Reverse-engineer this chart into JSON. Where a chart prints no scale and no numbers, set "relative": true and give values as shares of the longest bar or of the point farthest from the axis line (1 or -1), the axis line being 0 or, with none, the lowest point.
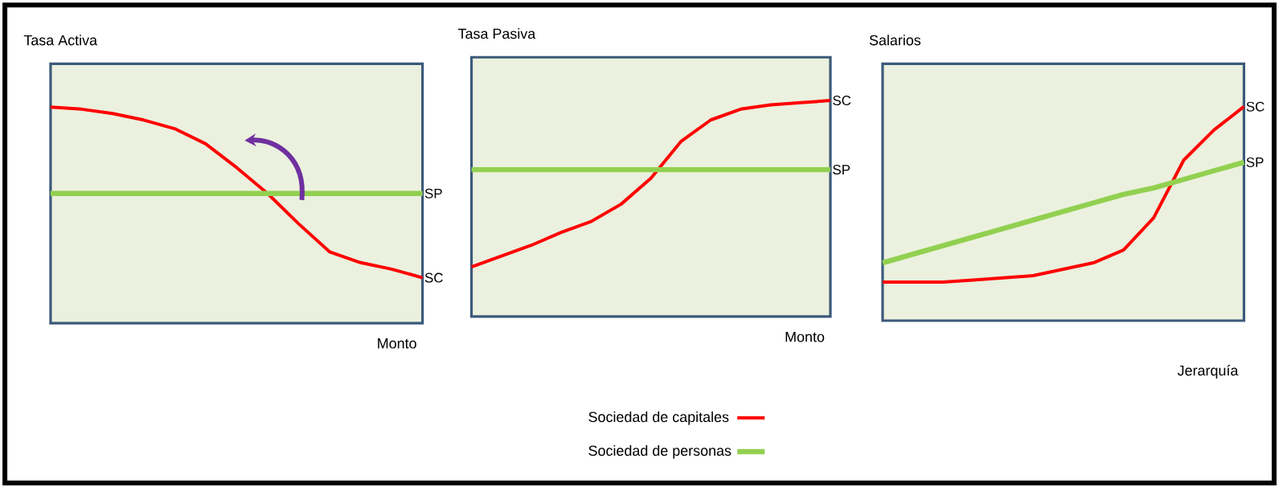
{
  "chart_data": [
    {
      "type": "line",
      "title": "Tasa Activa",
      "xlabel": "Monto",
      "relative": true,
      "categories": [
        null,
        null,
        null,
        null,
        null,
        null,
        null,
        null,
        null,
        null,
        null,
        null,
        null
      ],
      "series": [
        {
          "color": "#ff0000",
          "values": [
            1.0,
            0.99,
            0.97,
            0.94,
            0.9,
            0.83,
            0.72,
            0.6,
            0.46,
            0.33,
            0.28,
            0.25,
            0.21
          ]
        },
        {
          "color": "#92d050",
          "values": [
            0.6,
            0.6,
            0.6,
            0.6,
            0.6,
            0.6,
            0.6,
            0.6,
            0.6,
            0.6,
            0.6,
            0.6,
            0.6
          ]
        }
      ],
      "annotations": [
        "SC",
        "SP"
      ]
    },
    {
      "type": "line",
      "title": "Tasa Pasiva",
      "xlabel": "Monto",
      "relative": true,
      "legend": "bottom",
      "categories": [
        null,
        null,
        null,
        null,
        null,
        null,
        null,
        null,
        null,
        null,
        null,
        null,
        null
      ],
      "series": [
        {
          "name": "Sociedad de capitales",
          "color": "#ff0000",
          "values": [
            0.23,
            0.28,
            0.33,
            0.39,
            0.44,
            0.52,
            0.64,
            0.81,
            0.91,
            0.96,
            0.98,
            0.99,
            1.0
          ]
        },
        {
          "name": "Sociedad de personas",
          "color": "#92d050",
          "values": [
            0.68,
            0.68,
            0.68,
            0.68,
            0.68,
            0.68,
            0.68,
            0.68,
            0.68,
            0.68,
            0.68,
            0.68,
            0.68
          ]
        }
      ],
      "annotations": [
        "SC",
        "SP"
      ]
    },
    {
      "type": "line",
      "title": "Salarios",
      "xlabel": "Jerarquía",
      "relative": true,
      "categories": [
        null,
        null,
        null,
        null,
        null,
        null,
        null,
        null,
        null,
        null,
        null,
        null,
        null
      ],
      "series": [
        {
          "color": "#ff0000",
          "values": [
            0.18,
            0.18,
            0.18,
            0.19,
            0.2,
            0.21,
            0.24,
            0.27,
            0.33,
            0.48,
            0.75,
            0.89,
            1.0
          ]
        },
        {
          "color": "#92d050",
          "values": [
            0.27,
            0.31,
            0.35,
            0.39,
            0.43,
            0.47,
            0.51,
            0.55,
            0.59,
            0.62,
            0.66,
            0.7,
            0.74
          ]
        }
      ],
      "annotations": [
        "SC",
        "SP"
      ]
    }
  ]
}
